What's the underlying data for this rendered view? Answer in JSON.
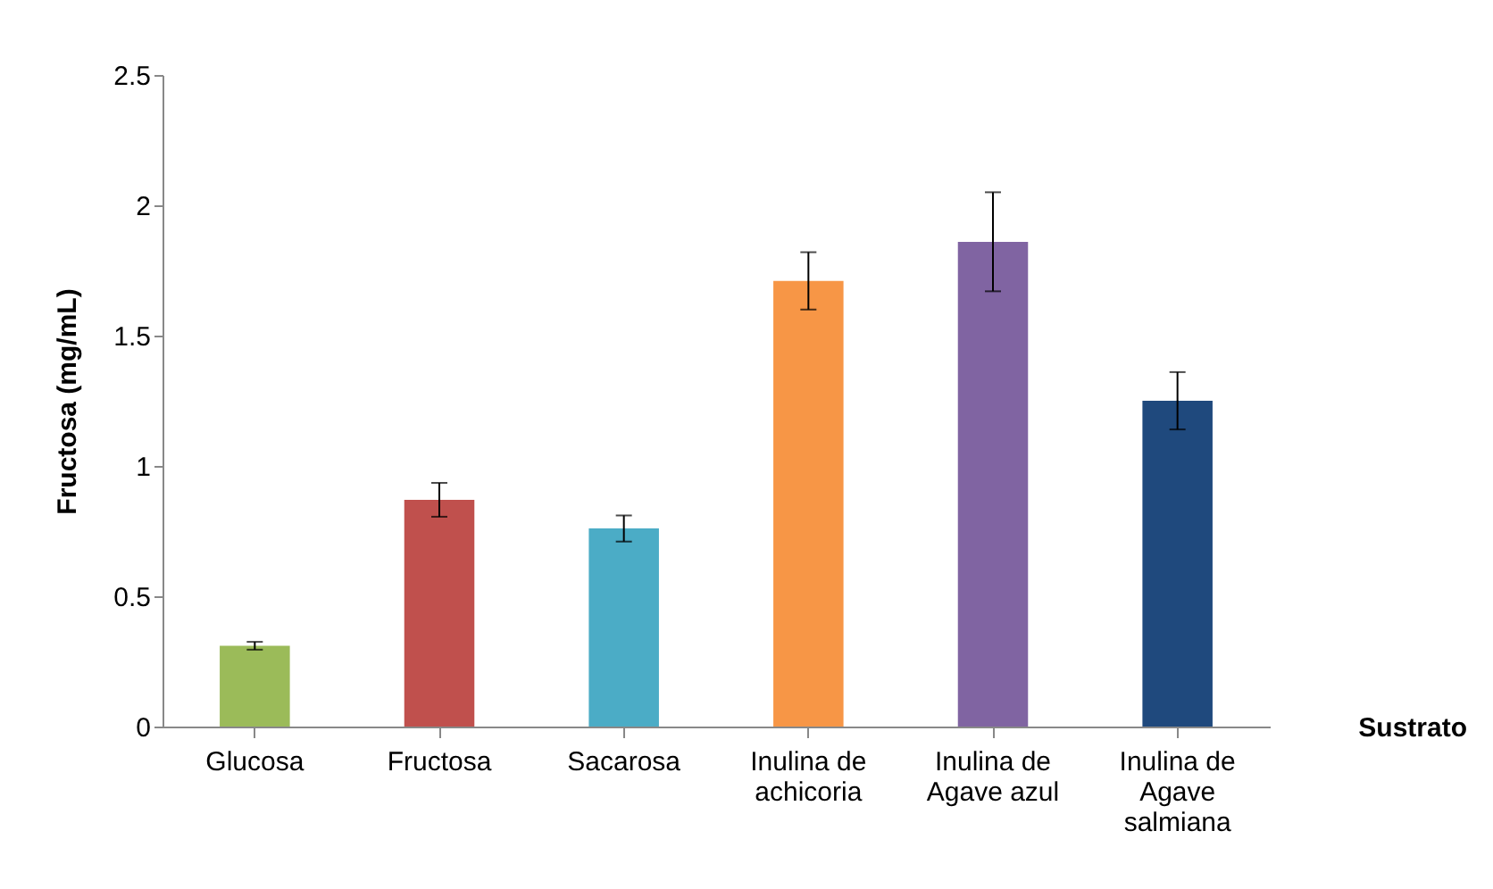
{
  "chart_data": {
    "type": "bar",
    "xlabel": "Sustrato",
    "ylabel": "Fructosa (mg/mL)",
    "categories": [
      "Glucosa",
      "Fructosa",
      "Sacarosa",
      "Inulina de\nachicoria",
      "Inulina de\nAgave azul",
      "Inulina de\nAgave\nsalmiana"
    ],
    "values": [
      0.31,
      0.87,
      0.76,
      1.71,
      1.86,
      1.25
    ],
    "errors": [
      0.015,
      0.065,
      0.05,
      0.11,
      0.19,
      0.11
    ],
    "colors": [
      "#9bbb59",
      "#c0504d",
      "#4bacc6",
      "#f79646",
      "#8064a2",
      "#1f497d"
    ],
    "ylim": [
      0,
      2.5
    ],
    "yticks": [
      0,
      0.5,
      1,
      1.5,
      2,
      2.5
    ],
    "grid": false,
    "legend": false
  }
}
